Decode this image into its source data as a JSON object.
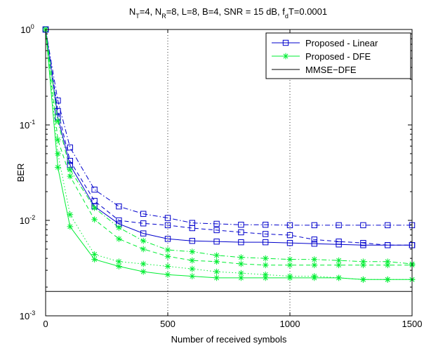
{
  "chart_data": {
    "type": "line",
    "title_parts": [
      {
        "t": "N"
      },
      {
        "t": "T",
        "sub": true
      },
      {
        "t": "=4, N"
      },
      {
        "t": "R",
        "sub": true
      },
      {
        "t": "=8, L=8, B=4, SNR = 15 dB, f"
      },
      {
        "t": "d",
        "sub": true
      },
      {
        "t": "T=0.0001"
      }
    ],
    "xlabel": "Number of received symbols",
    "ylabel": "BER",
    "xlim": [
      0,
      1500
    ],
    "ylim": [
      0.001,
      1
    ],
    "yscale": "log",
    "x_ticks": [
      0,
      500,
      1000,
      1500
    ],
    "x_tick_labels": [
      "0",
      "500",
      "1000",
      "1500"
    ],
    "y_ticks": [
      0.001,
      0.01,
      0.1,
      1
    ],
    "y_tick_labels": [
      {
        "base": "10",
        "exp": "-3"
      },
      {
        "base": "10",
        "exp": "-2"
      },
      {
        "base": "10",
        "exp": "-1"
      },
      {
        "base": "10",
        "exp": "0"
      }
    ],
    "grid": "vertical dotted at x ticks",
    "legend_position": "top-right",
    "legend": [
      {
        "label": "Proposed - Linear",
        "color": "#0000cc",
        "marker": "square"
      },
      {
        "label": "Proposed - DFE",
        "color": "#00ee33",
        "marker": "star"
      },
      {
        "label": "MMSE−DFE",
        "color": "#000000",
        "marker": "none"
      }
    ],
    "series": [
      {
        "group": "Proposed - Linear",
        "color": "#0000cc",
        "marker": "square",
        "dash": "solid",
        "x": [
          0,
          50,
          100,
          200,
          300,
          400,
          500,
          600,
          700,
          800,
          900,
          1000,
          1100,
          1200,
          1300,
          1400,
          1500
        ],
        "y": [
          1.0,
          0.12,
          0.038,
          0.014,
          0.0092,
          0.0073,
          0.0064,
          0.0061,
          0.006,
          0.0059,
          0.0059,
          0.0058,
          0.0057,
          0.0056,
          0.0055,
          0.0055,
          0.0055
        ]
      },
      {
        "group": "Proposed - Linear",
        "color": "#0000cc",
        "marker": "square",
        "dash": "dashed",
        "x": [
          0,
          50,
          100,
          200,
          300,
          400,
          500,
          600,
          700,
          800,
          900,
          1000,
          1100,
          1200,
          1300,
          1400,
          1500
        ],
        "y": [
          1.0,
          0.14,
          0.042,
          0.016,
          0.01,
          0.0093,
          0.0089,
          0.0083,
          0.0079,
          0.0075,
          0.0072,
          0.007,
          0.0063,
          0.006,
          0.0058,
          0.0055,
          0.0055
        ]
      },
      {
        "group": "Proposed - Linear",
        "color": "#0000cc",
        "marker": "square",
        "dash": "dashdot",
        "x": [
          0,
          50,
          100,
          200,
          300,
          400,
          500,
          600,
          700,
          800,
          900,
          1000,
          1100,
          1200,
          1300,
          1400,
          1500
        ],
        "y": [
          1.0,
          0.18,
          0.058,
          0.021,
          0.014,
          0.0117,
          0.0106,
          0.0094,
          0.0092,
          0.009,
          0.009,
          0.0089,
          0.0089,
          0.0089,
          0.0089,
          0.0089,
          0.0089
        ]
      },
      {
        "group": "Proposed - DFE",
        "color": "#00ee33",
        "marker": "star",
        "dash": "solid",
        "x": [
          0,
          50,
          100,
          200,
          300,
          400,
          500,
          600,
          700,
          800,
          900,
          1000,
          1100,
          1200,
          1300,
          1400,
          1500
        ],
        "y": [
          1.0,
          0.036,
          0.0086,
          0.0039,
          0.0033,
          0.0029,
          0.0027,
          0.0026,
          0.0025,
          0.0025,
          0.0025,
          0.0025,
          0.0025,
          0.0025,
          0.0024,
          0.0024,
          0.0024
        ]
      },
      {
        "group": "Proposed - DFE",
        "color": "#00ee33",
        "marker": "star",
        "dash": "dotted",
        "x": [
          0,
          50,
          100,
          200,
          300,
          400,
          500,
          600,
          700,
          800,
          900,
          1000,
          1100,
          1200,
          1300,
          1400,
          1500
        ],
        "y": [
          1.0,
          0.05,
          0.0115,
          0.0044,
          0.0037,
          0.0035,
          0.0033,
          0.0031,
          0.0029,
          0.0028,
          0.0027,
          0.0026,
          0.0026,
          0.0025,
          0.0024,
          0.0024,
          0.0024
        ]
      },
      {
        "group": "Proposed - DFE",
        "color": "#00ee33",
        "marker": "star",
        "dash": "dashed",
        "x": [
          0,
          50,
          100,
          200,
          300,
          400,
          500,
          600,
          700,
          800,
          900,
          1000,
          1100,
          1200,
          1300,
          1400,
          1500
        ],
        "y": [
          1.0,
          0.07,
          0.029,
          0.0102,
          0.0064,
          0.005,
          0.0042,
          0.0038,
          0.0037,
          0.0035,
          0.0034,
          0.0034,
          0.0034,
          0.0034,
          0.0034,
          0.0034,
          0.0034
        ]
      },
      {
        "group": "Proposed - DFE",
        "color": "#00ee33",
        "marker": "star",
        "dash": "dashdot",
        "x": [
          0,
          50,
          100,
          200,
          300,
          400,
          500,
          600,
          700,
          800,
          900,
          1000,
          1100,
          1200,
          1300,
          1400,
          1500
        ],
        "y": [
          1.0,
          0.11,
          0.034,
          0.0135,
          0.0084,
          0.0061,
          0.0049,
          0.0047,
          0.0043,
          0.0041,
          0.004,
          0.0039,
          0.0039,
          0.0038,
          0.0037,
          0.0037,
          0.0035
        ]
      },
      {
        "group": "MMSE−DFE",
        "color": "#000000",
        "marker": "none",
        "dash": "solid",
        "x": [
          0,
          1500
        ],
        "y": [
          0.0018,
          0.0018
        ]
      }
    ]
  }
}
